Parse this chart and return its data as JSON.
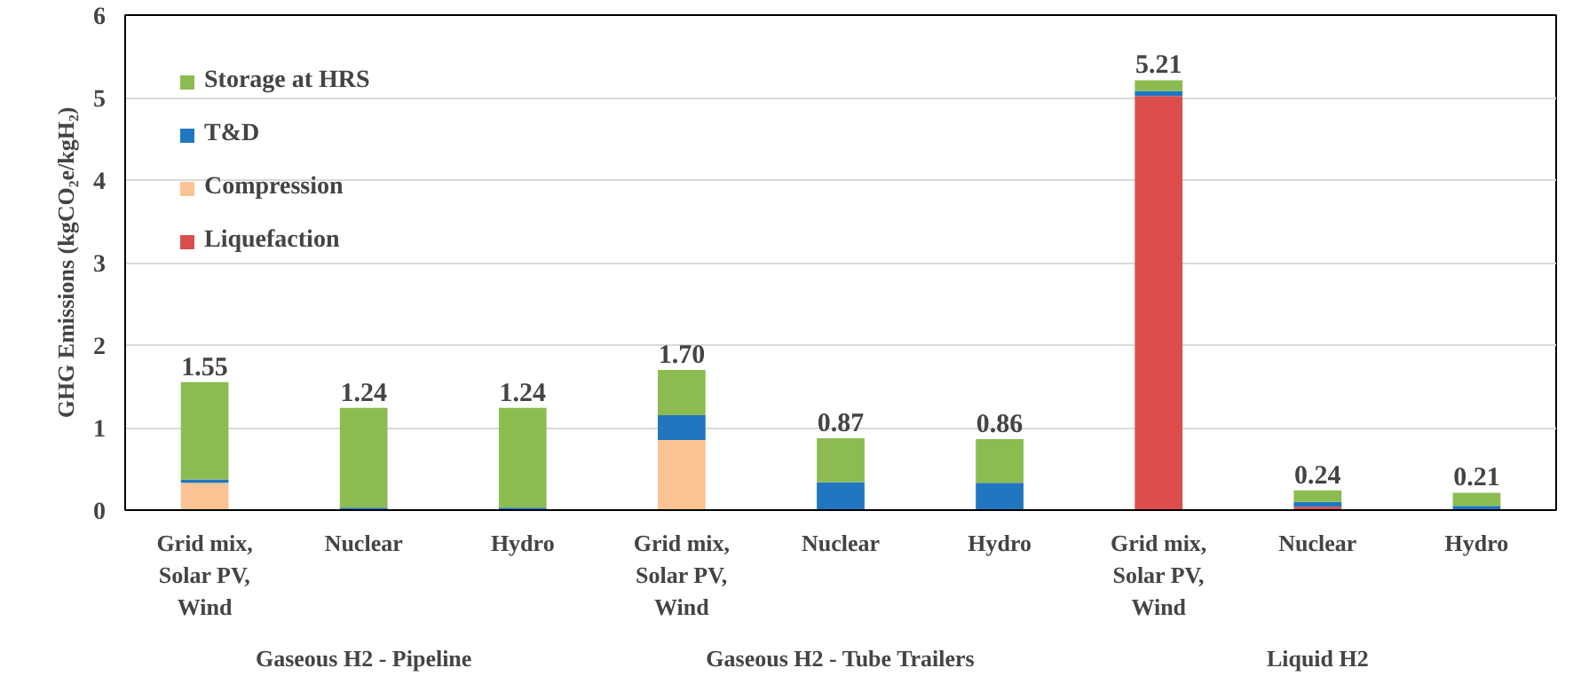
{
  "chart_data": {
    "type": "bar",
    "stacked": true,
    "ylabel": "GHG Emissions (kgCO₂e/kgH₂)",
    "categories": [
      "Grid mix,\nSolar PV,\nWind",
      "Nuclear",
      "Hydro",
      "Grid mix,\nSolar PV,\nWind",
      "Nuclear",
      "Hydro",
      "Grid mix,\nSolar PV,\nWind",
      "Nuclear",
      "Hydro"
    ],
    "annotations": [
      "Gaseous H2 - Pipeline",
      "Gaseous H2 - Tube Trailers",
      "Liquid H2"
    ],
    "series": [
      {
        "name": "Liquefaction",
        "color": "#dc4e4e",
        "values": [
          0,
          0,
          0,
          0,
          0,
          0,
          5.02,
          0.04,
          0
        ]
      },
      {
        "name": "Compression",
        "color": "#fbc393",
        "values": [
          0.33,
          0,
          0,
          0.85,
          0,
          0,
          0,
          0,
          0
        ]
      },
      {
        "name": "T&D",
        "color": "#2176c0",
        "values": [
          0.04,
          0.03,
          0.03,
          0.3,
          0.34,
          0.33,
          0.06,
          0.06,
          0.05
        ]
      },
      {
        "name": "Storage at HRS",
        "color": "#8cbc50",
        "values": [
          1.18,
          1.21,
          1.21,
          0.55,
          0.53,
          0.53,
          0.13,
          0.14,
          0.16
        ]
      }
    ],
    "totals": [
      "1.55",
      "1.24",
      "1.24",
      "1.70",
      "0.87",
      "0.86",
      "5.21",
      "0.24",
      "0.21"
    ],
    "ylim": [
      0,
      6
    ],
    "yticks": [
      0,
      1,
      2,
      3,
      4,
      5,
      6
    ],
    "grid": "y",
    "legend": "top left"
  }
}
